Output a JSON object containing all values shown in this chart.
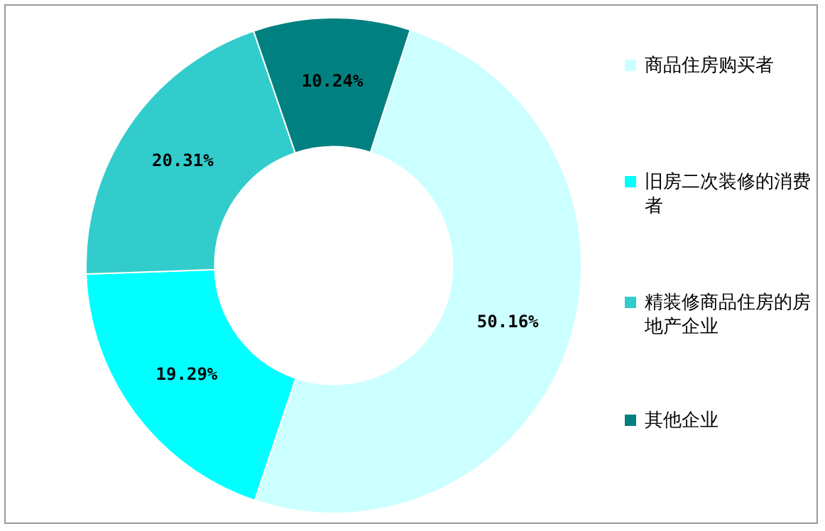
{
  "chart_data": {
    "type": "donut",
    "categories": [
      "商品住房购买者",
      "旧房二次装修的消费者",
      "精装修商品住房的房地产企业",
      "其他企业"
    ],
    "values": [
      50.16,
      19.29,
      20.31,
      10.24
    ],
    "colors": [
      "#ccffff",
      "#00ffff",
      "#33cccc",
      "#008080"
    ],
    "value_labels": [
      "50.16%",
      "19.29%",
      "20.31%",
      "10.24%"
    ],
    "legend": "right"
  }
}
